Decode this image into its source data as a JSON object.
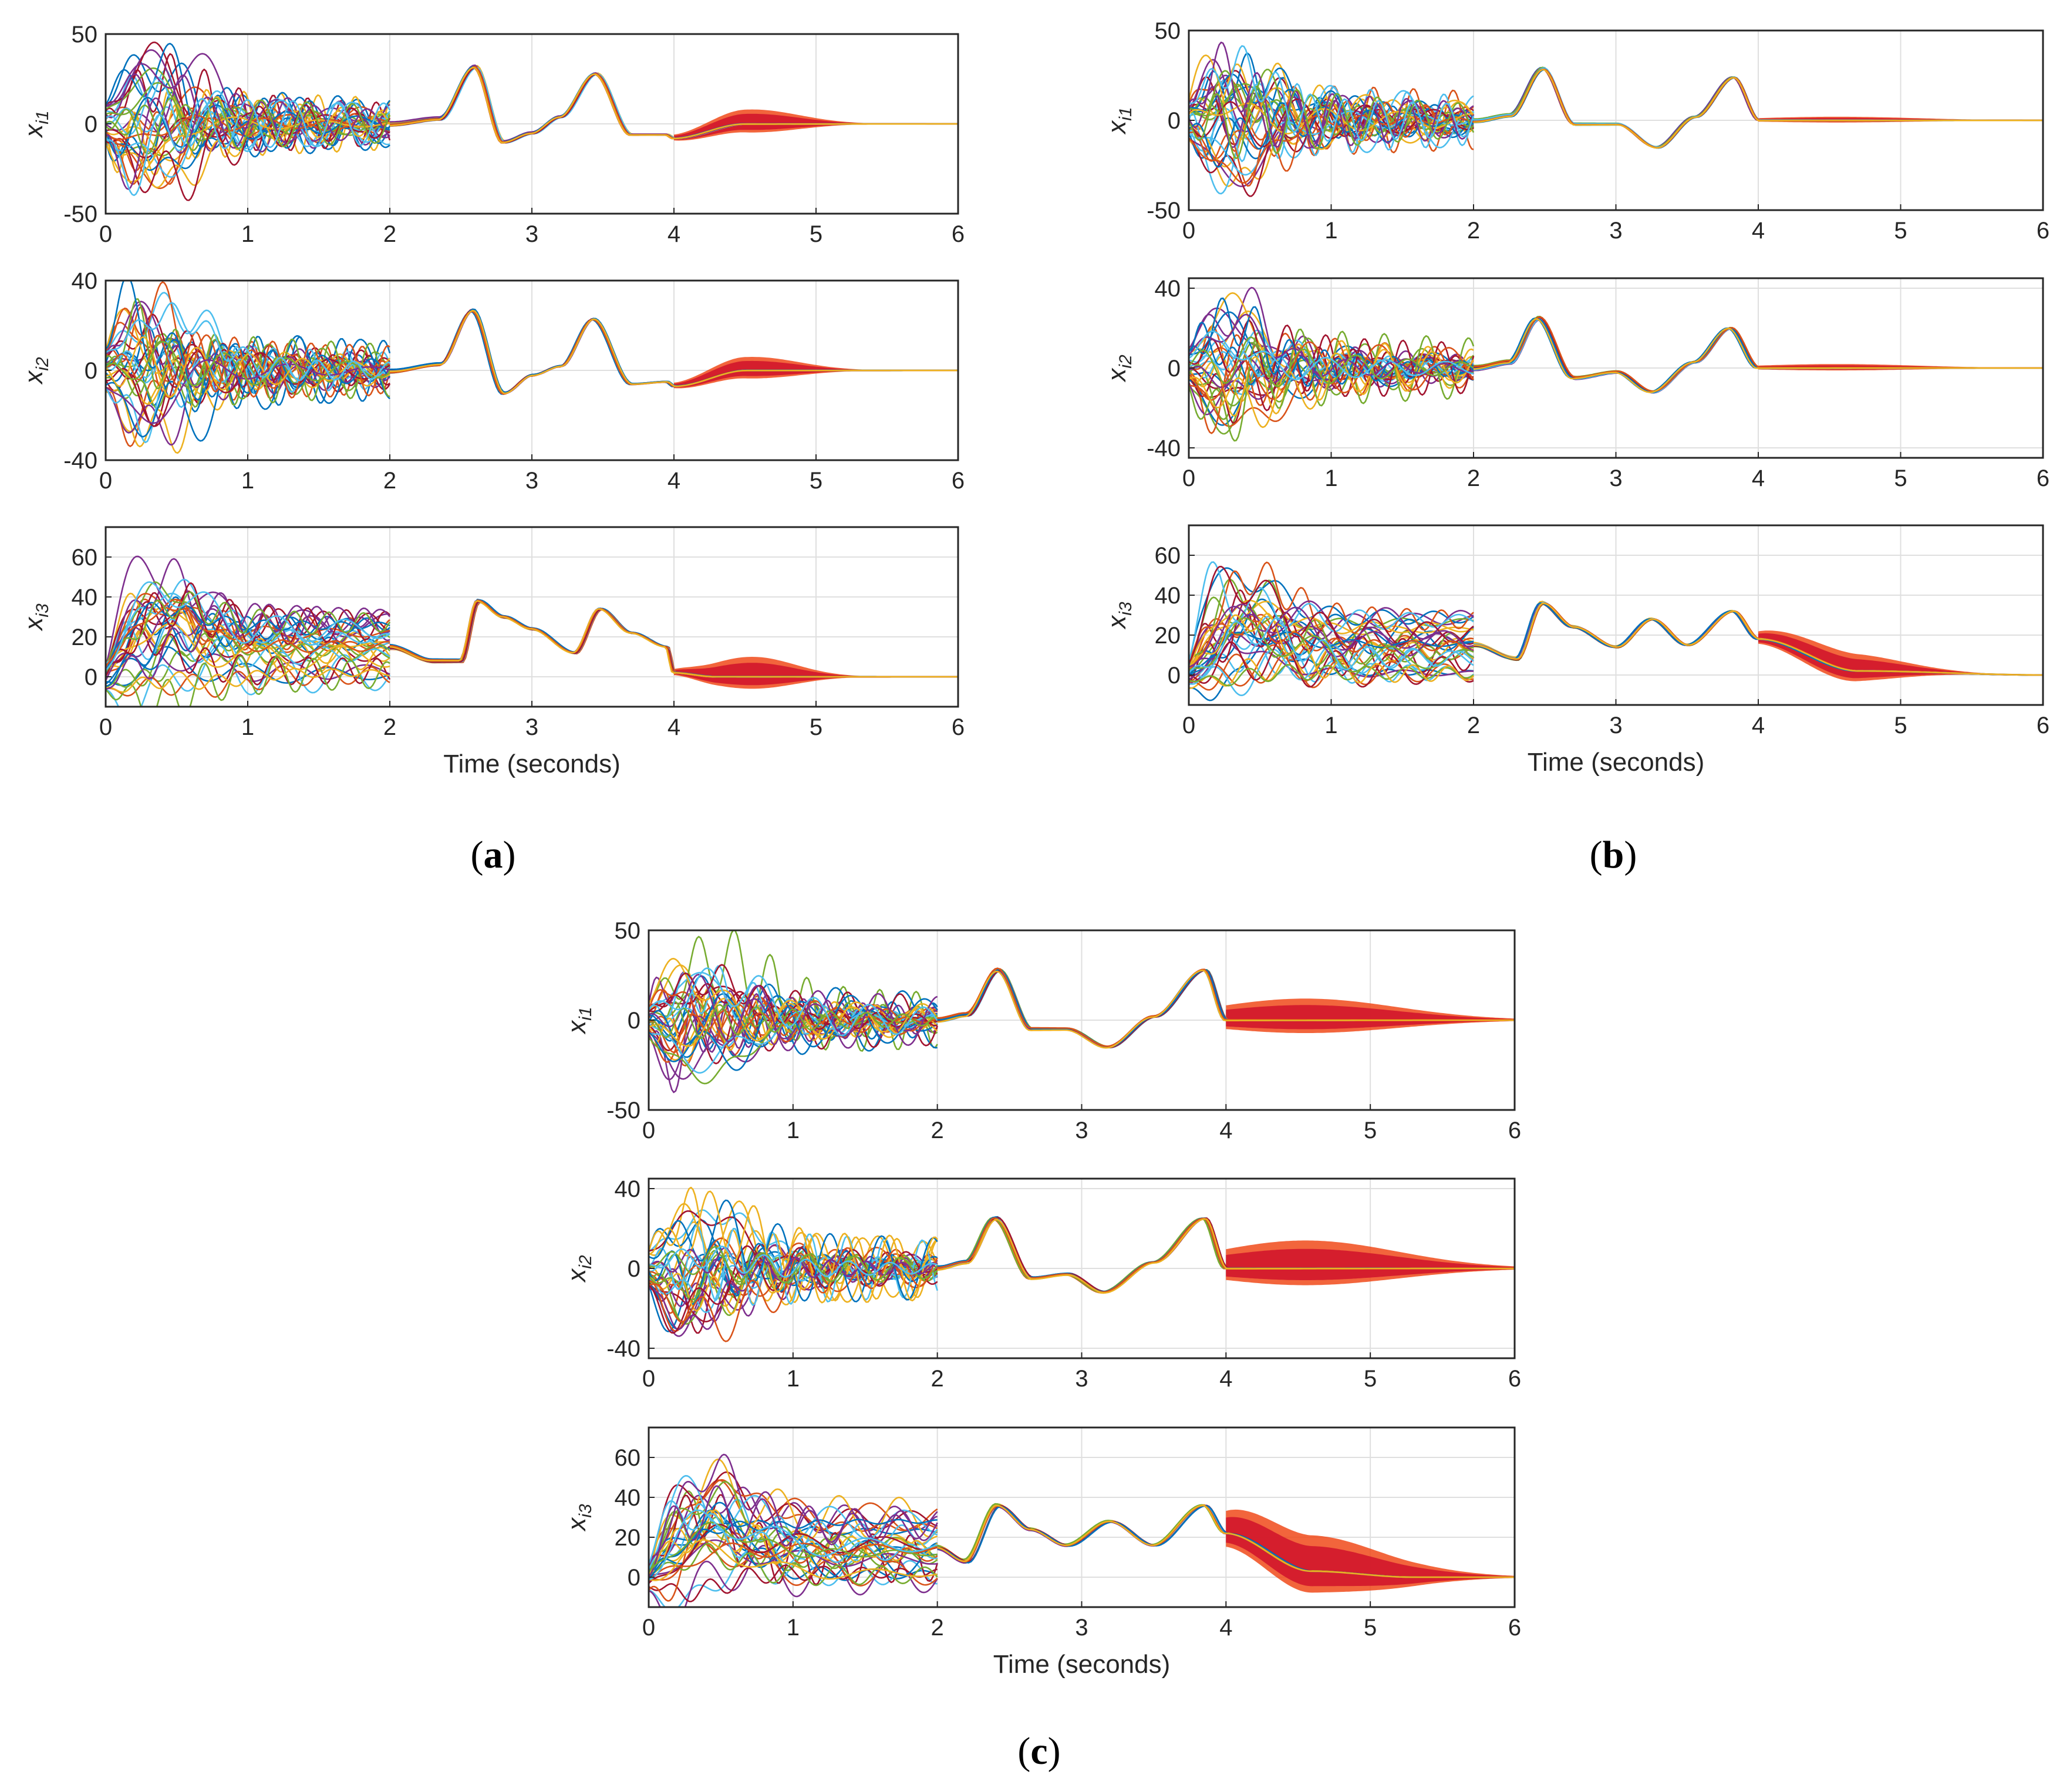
{
  "chart_data": [
    {
      "panel": "a",
      "caption": "a",
      "type": "line",
      "xlabel": "Time (seconds)",
      "xlim": [
        0,
        6
      ],
      "xticks": [
        "0",
        "1",
        "2",
        "3",
        "4",
        "5",
        "6"
      ],
      "subplots": [
        {
          "ylabel": "x",
          "ylabel_sub": "i1",
          "ylim": [
            -50,
            50
          ],
          "yticks": [
            "-50",
            "0",
            "50"
          ],
          "transient": {
            "end": 2,
            "amp": 38,
            "bias": 0
          },
          "consensus_t": [
            2.0,
            2.35,
            2.6,
            2.8,
            3.0,
            3.2,
            3.45,
            3.7,
            3.95,
            4.0,
            4.5,
            6.0
          ],
          "consensus_v": [
            0,
            3,
            32,
            -10,
            -5,
            4,
            28,
            -6,
            -6,
            -8,
            0,
            0
          ],
          "band": {
            "start": 4,
            "amp": 8,
            "color": "#d31a2c",
            "decay": 0.12
          }
        },
        {
          "ylabel": "x",
          "ylabel_sub": "i2",
          "ylim": [
            -40,
            40
          ],
          "yticks": [
            "-40",
            "0",
            "40"
          ],
          "transient": {
            "end": 2,
            "amp": 34,
            "bias": 0
          },
          "consensus_t": [
            2.0,
            2.35,
            2.58,
            2.8,
            3.0,
            3.2,
            3.43,
            3.7,
            3.95,
            4.0,
            4.5,
            6.0
          ],
          "consensus_v": [
            0,
            3,
            27,
            -10,
            -2,
            2,
            23,
            -6,
            -5,
            -7,
            0,
            0
          ],
          "band": {
            "start": 4,
            "amp": 6,
            "color": "#d31a2c",
            "decay": 0.12
          }
        },
        {
          "ylabel": "x",
          "ylabel_sub": "i3",
          "ylim": [
            -15,
            75
          ],
          "yticks": [
            "0",
            "20",
            "40",
            "60"
          ],
          "transient": {
            "end": 2,
            "amp": 25,
            "bias": 25
          },
          "consensus_t": [
            2.0,
            2.3,
            2.5,
            2.62,
            2.8,
            3.0,
            3.3,
            3.48,
            3.7,
            3.95,
            4.0,
            4.3,
            6.0
          ],
          "consensus_v": [
            15,
            8,
            8,
            38,
            30,
            24,
            12,
            34,
            22,
            15,
            2,
            0,
            0
          ],
          "band": {
            "start": 4,
            "amp": 10,
            "color": "#d31a2c",
            "decay": 0.08
          }
        }
      ]
    },
    {
      "panel": "b",
      "caption": "b",
      "type": "line",
      "xlabel": "Time (seconds)",
      "xlim": [
        0,
        6
      ],
      "xticks": [
        "0",
        "1",
        "2",
        "3",
        "4",
        "5",
        "6"
      ],
      "subplots": [
        {
          "ylabel": "x",
          "ylabel_sub": "i1",
          "ylim": [
            -50,
            50
          ],
          "yticks": [
            "-50",
            "0",
            "50"
          ],
          "transient": {
            "end": 2,
            "amp": 38,
            "bias": 0
          },
          "consensus_t": [
            2.0,
            2.25,
            2.48,
            2.7,
            3.0,
            3.28,
            3.55,
            3.82,
            4.0,
            4.7,
            6.0
          ],
          "consensus_v": [
            0,
            3,
            29,
            -2,
            -2,
            -15,
            2,
            24,
            0,
            0,
            0
          ],
          "band": {
            "start": 4,
            "amp": 2,
            "color": "#d31a2c",
            "decay": 0.45
          }
        },
        {
          "ylabel": "x",
          "ylabel_sub": "i2",
          "ylim": [
            -45,
            45
          ],
          "yticks": [
            "-40",
            "0",
            "40"
          ],
          "transient": {
            "end": 2,
            "amp": 34,
            "bias": 0
          },
          "consensus_t": [
            2.0,
            2.25,
            2.45,
            2.7,
            3.0,
            3.25,
            3.55,
            3.8,
            4.0,
            4.7,
            6.0
          ],
          "consensus_v": [
            0,
            3,
            25,
            -5,
            -2,
            -12,
            3,
            20,
            0,
            0,
            0
          ],
          "band": {
            "start": 4,
            "amp": 2,
            "color": "#d31a2c",
            "decay": 0.45
          }
        },
        {
          "ylabel": "x",
          "ylabel_sub": "i3",
          "ylim": [
            -15,
            75
          ],
          "yticks": [
            "0",
            "20",
            "40",
            "60"
          ],
          "transient": {
            "end": 2,
            "amp": 25,
            "bias": 25
          },
          "consensus_t": [
            2.0,
            2.3,
            2.48,
            2.7,
            3.0,
            3.25,
            3.5,
            3.82,
            4.0,
            4.7,
            6.0
          ],
          "consensus_v": [
            15,
            8,
            36,
            24,
            14,
            28,
            15,
            32,
            18,
            2,
            0
          ],
          "band": {
            "start": 4,
            "amp": 9,
            "color": "#d31a2c",
            "decay": 0.25
          }
        }
      ]
    },
    {
      "panel": "c",
      "caption": "c",
      "type": "line",
      "xlabel": "Time (seconds)",
      "xlim": [
        0,
        6
      ],
      "xticks": [
        "0",
        "1",
        "2",
        "3",
        "4",
        "5",
        "6"
      ],
      "subplots": [
        {
          "ylabel": "x",
          "ylabel_sub": "i1",
          "ylim": [
            -50,
            50
          ],
          "yticks": [
            "-50",
            "0",
            "50"
          ],
          "transient": {
            "end": 2,
            "amp": 38,
            "bias": 0
          },
          "consensus_t": [
            2.0,
            2.2,
            2.42,
            2.65,
            2.9,
            3.18,
            3.5,
            3.85,
            4.0,
            5.3,
            6.0
          ],
          "consensus_v": [
            0,
            3,
            28,
            -5,
            -5,
            -15,
            2,
            28,
            0,
            0,
            0
          ],
          "band": {
            "start": 4,
            "amp": 12,
            "color": "#d31a2c",
            "decay": 0.55
          }
        },
        {
          "ylabel": "x",
          "ylabel_sub": "i2",
          "ylim": [
            -45,
            45
          ],
          "yticks": [
            "-40",
            "0",
            "40"
          ],
          "transient": {
            "end": 2,
            "amp": 34,
            "bias": 0
          },
          "consensus_t": [
            2.0,
            2.2,
            2.4,
            2.65,
            2.9,
            3.15,
            3.5,
            3.85,
            4.0,
            5.3,
            6.0
          ],
          "consensus_v": [
            0,
            3,
            25,
            -5,
            -3,
            -12,
            3,
            25,
            0,
            0,
            0
          ],
          "band": {
            "start": 4,
            "amp": 14,
            "color": "#d31a2c",
            "decay": 0.55
          }
        },
        {
          "ylabel": "x",
          "ylabel_sub": "i3",
          "ylim": [
            -15,
            75
          ],
          "yticks": [
            "0",
            "20",
            "40",
            "60"
          ],
          "transient": {
            "end": 2,
            "amp": 25,
            "bias": 25
          },
          "consensus_t": [
            2.0,
            2.2,
            2.42,
            2.65,
            2.9,
            3.2,
            3.5,
            3.85,
            4.0,
            4.6,
            5.3,
            6.0
          ],
          "consensus_v": [
            15,
            8,
            36,
            24,
            16,
            28,
            16,
            36,
            22,
            3,
            0,
            0
          ],
          "band": {
            "start": 4,
            "amp": 18,
            "color": "#d31a2c",
            "decay": 0.45
          }
        }
      ]
    }
  ],
  "colors": {
    "palette": [
      "#0072bd",
      "#d95319",
      "#edb120",
      "#7e2f8e",
      "#77ac30",
      "#4dbeee",
      "#a2142f"
    ],
    "band_secondary": "#f04a1a",
    "axis": "#262626",
    "grid": "#dfdfdf"
  }
}
